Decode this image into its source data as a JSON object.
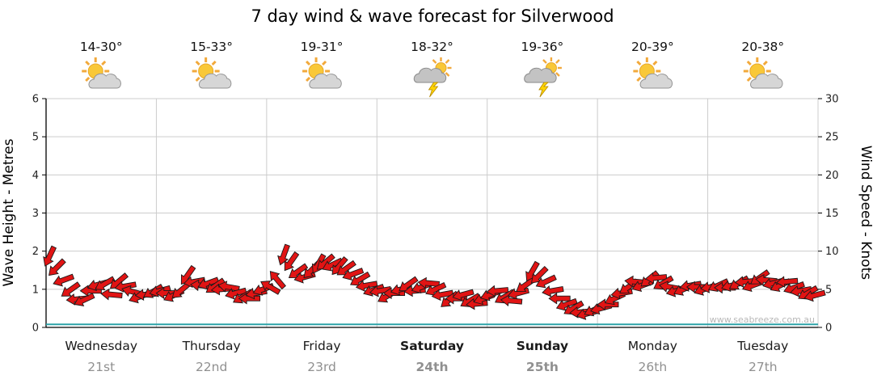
{
  "title": "7 day wind & wave forecast for Silverwood",
  "watermark": "www.seabreeze.com.au",
  "days": [
    {
      "name": "Wednesday",
      "date": "21st",
      "temp": "14-30°",
      "icon": "partly-cloudy",
      "bold": false
    },
    {
      "name": "Thursday",
      "date": "22nd",
      "temp": "15-33°",
      "icon": "partly-cloudy",
      "bold": false
    },
    {
      "name": "Friday",
      "date": "23rd",
      "temp": "19-31°",
      "icon": "partly-cloudy",
      "bold": false
    },
    {
      "name": "Saturday",
      "date": "24th",
      "temp": "18-32°",
      "icon": "thunderstorm",
      "bold": true
    },
    {
      "name": "Sunday",
      "date": "25th",
      "temp": "19-36°",
      "icon": "thunderstorm",
      "bold": true
    },
    {
      "name": "Monday",
      "date": "26th",
      "temp": "20-39°",
      "icon": "partly-cloudy",
      "bold": false
    },
    {
      "name": "Tuesday",
      "date": "27th",
      "temp": "20-38°",
      "icon": "partly-cloudy",
      "bold": false
    }
  ],
  "colors": {
    "arrow_fill": "#e11414",
    "arrow_stroke": "#1a1a1a",
    "grid": "#cccccc",
    "axis": "#000000",
    "wave_line": "#2da3a8",
    "date_text": "#909090",
    "watermark_text": "#b8b8b8",
    "sun": "#f9c838",
    "cloud": "#d6d6d6",
    "bolt": "#ffd400"
  },
  "chart_data": {
    "type": "scatter",
    "title": "7 day wind & wave forecast for Silverwood",
    "x_axis": {
      "categories": [
        "Wednesday",
        "Thursday",
        "Friday",
        "Saturday",
        "Sunday",
        "Monday",
        "Tuesday"
      ],
      "dates": [
        "21st",
        "22nd",
        "23rd",
        "24th",
        "25th",
        "26th",
        "27th"
      ],
      "range": [
        0,
        7
      ]
    },
    "y_left": {
      "label": "Wave Height - Metres",
      "ticks": [
        0,
        1,
        2,
        3,
        4,
        5,
        6
      ],
      "range": [
        0,
        6
      ]
    },
    "y_right": {
      "label": "Wind Speed - Knots",
      "ticks": [
        0,
        5,
        10,
        15,
        20,
        25,
        30
      ],
      "range": [
        0,
        30
      ]
    },
    "legend": "off",
    "grid": "on",
    "wave_height_line": {
      "units": "metres",
      "points": [
        [
          0,
          0.08
        ],
        [
          7,
          0.08
        ]
      ]
    },
    "wind_arrows": {
      "units": "knots",
      "point_format": [
        "x_day_fraction",
        "speed_knots",
        "direction_deg"
      ],
      "points": [
        [
          0.031,
          9.3,
          205
        ],
        [
          0.094,
          7.8,
          225
        ],
        [
          0.156,
          6.2,
          250
        ],
        [
          0.219,
          4.9,
          235
        ],
        [
          0.281,
          3.7,
          265
        ],
        [
          0.344,
          3.6,
          245
        ],
        [
          0.406,
          4.8,
          270
        ],
        [
          0.469,
          5.6,
          255
        ],
        [
          0.531,
          5.7,
          240
        ],
        [
          0.594,
          4.3,
          275
        ],
        [
          0.656,
          6.0,
          230
        ],
        [
          0.719,
          5.4,
          260
        ],
        [
          0.781,
          4.7,
          285
        ],
        [
          0.844,
          4.0,
          250
        ],
        [
          0.906,
          4.3,
          265
        ],
        [
          0.969,
          4.7,
          240
        ],
        [
          1.031,
          4.8,
          255
        ],
        [
          1.094,
          4.5,
          270
        ],
        [
          1.156,
          4.2,
          245
        ],
        [
          1.219,
          4.8,
          230
        ],
        [
          1.281,
          6.8,
          215
        ],
        [
          1.344,
          6.0,
          260
        ],
        [
          1.406,
          5.5,
          275
        ],
        [
          1.469,
          5.8,
          250
        ],
        [
          1.531,
          5.4,
          235
        ],
        [
          1.594,
          5.0,
          265
        ],
        [
          1.656,
          5.3,
          280
        ],
        [
          1.719,
          4.5,
          255
        ],
        [
          1.781,
          4.0,
          240
        ],
        [
          1.844,
          3.8,
          270
        ],
        [
          1.906,
          4.5,
          260
        ],
        [
          1.969,
          5.0,
          250
        ],
        [
          2.031,
          5.3,
          300
        ],
        [
          2.094,
          6.3,
          320
        ],
        [
          2.156,
          9.5,
          200
        ],
        [
          2.219,
          8.6,
          215
        ],
        [
          2.281,
          7.3,
          235
        ],
        [
          2.344,
          6.6,
          255
        ],
        [
          2.406,
          7.5,
          225
        ],
        [
          2.469,
          8.3,
          210
        ],
        [
          2.531,
          8.5,
          230
        ],
        [
          2.594,
          8.2,
          245
        ],
        [
          2.656,
          8.0,
          220
        ],
        [
          2.719,
          7.7,
          235
        ],
        [
          2.781,
          7.0,
          250
        ],
        [
          2.844,
          6.3,
          240
        ],
        [
          2.906,
          5.5,
          260
        ],
        [
          2.969,
          4.9,
          250
        ],
        [
          3.031,
          4.8,
          260
        ],
        [
          3.094,
          4.1,
          240
        ],
        [
          3.156,
          4.5,
          270
        ],
        [
          3.219,
          5.0,
          255
        ],
        [
          3.281,
          5.6,
          235
        ],
        [
          3.344,
          4.8,
          265
        ],
        [
          3.406,
          5.3,
          250
        ],
        [
          3.469,
          5.8,
          275
        ],
        [
          3.531,
          5.0,
          245
        ],
        [
          3.594,
          4.3,
          260
        ],
        [
          3.656,
          3.6,
          230
        ],
        [
          3.719,
          3.8,
          270
        ],
        [
          3.781,
          4.3,
          255
        ],
        [
          3.844,
          3.5,
          240
        ],
        [
          3.906,
          3.1,
          265
        ],
        [
          3.969,
          3.8,
          250
        ],
        [
          4.031,
          4.3,
          250
        ],
        [
          4.094,
          4.8,
          265
        ],
        [
          4.156,
          4.0,
          240
        ],
        [
          4.219,
          3.5,
          275
        ],
        [
          4.281,
          4.5,
          255
        ],
        [
          4.344,
          5.5,
          235
        ],
        [
          4.406,
          7.3,
          210
        ],
        [
          4.469,
          6.8,
          225
        ],
        [
          4.531,
          6.0,
          245
        ],
        [
          4.594,
          4.8,
          260
        ],
        [
          4.656,
          3.8,
          270
        ],
        [
          4.719,
          3.0,
          250
        ],
        [
          4.781,
          2.5,
          240
        ],
        [
          4.844,
          2.0,
          265
        ],
        [
          4.906,
          1.8,
          255
        ],
        [
          4.969,
          2.3,
          245
        ],
        [
          5.031,
          2.5,
          255
        ],
        [
          5.094,
          3.0,
          270
        ],
        [
          5.156,
          3.8,
          245
        ],
        [
          5.219,
          4.5,
          260
        ],
        [
          5.281,
          5.3,
          235
        ],
        [
          5.344,
          6.0,
          275
        ],
        [
          5.406,
          5.5,
          250
        ],
        [
          5.469,
          6.3,
          230
        ],
        [
          5.531,
          6.5,
          265
        ],
        [
          5.594,
          5.8,
          240
        ],
        [
          5.656,
          5.3,
          280
        ],
        [
          5.719,
          4.8,
          255
        ],
        [
          5.781,
          5.0,
          245
        ],
        [
          5.844,
          5.5,
          260
        ],
        [
          5.906,
          5.3,
          270
        ],
        [
          5.969,
          5.0,
          250
        ],
        [
          6.031,
          5.3,
          260
        ],
        [
          6.094,
          5.5,
          245
        ],
        [
          6.156,
          5.2,
          270
        ],
        [
          6.219,
          5.5,
          255
        ],
        [
          6.281,
          5.8,
          240
        ],
        [
          6.344,
          6.0,
          265
        ],
        [
          6.406,
          5.5,
          250
        ],
        [
          6.469,
          6.5,
          235
        ],
        [
          6.531,
          6.2,
          275
        ],
        [
          6.594,
          5.8,
          255
        ],
        [
          6.656,
          5.5,
          245
        ],
        [
          6.719,
          6.0,
          265
        ],
        [
          6.781,
          5.2,
          250
        ],
        [
          6.844,
          4.8,
          260
        ],
        [
          6.906,
          4.5,
          240
        ],
        [
          6.969,
          4.2,
          255
        ]
      ]
    }
  }
}
